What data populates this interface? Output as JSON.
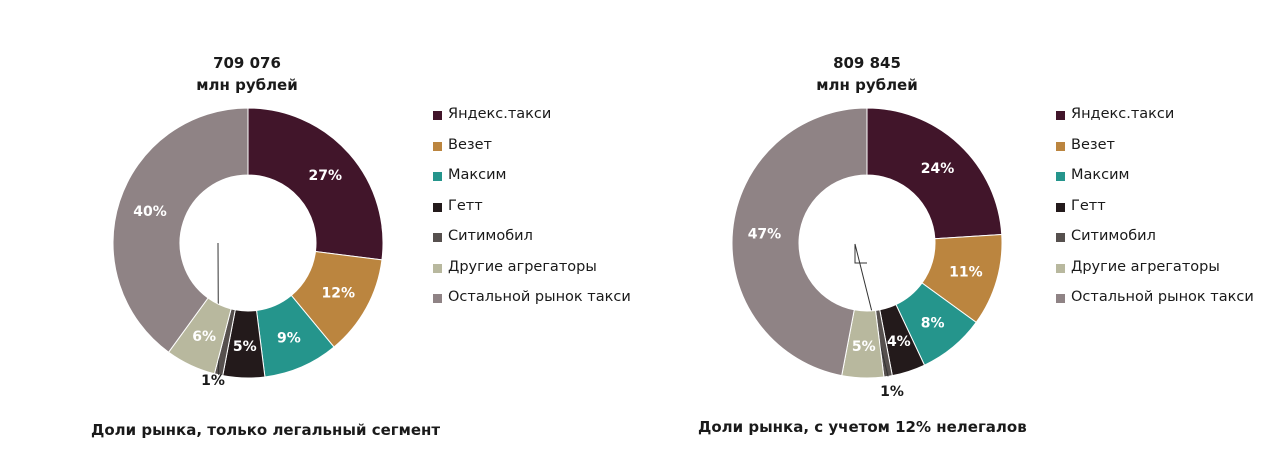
{
  "legend": [
    {
      "label": "Яндекс.такси",
      "color": "#41152a"
    },
    {
      "label": "Везет",
      "color": "#bb853f"
    },
    {
      "label": "Максим",
      "color": "#25958c"
    },
    {
      "label": "Гетт",
      "color": "#231a1b"
    },
    {
      "label": "Ситимобил",
      "color": "#56504e"
    },
    {
      "label": "Другие агрегаторы",
      "color": "#b8b89e"
    },
    {
      "label": "Остальной рынок такси",
      "color": "#8f8385"
    }
  ],
  "chart_data": [
    {
      "type": "pie",
      "variant": "donut",
      "title_value": "709 076",
      "title_unit": "млн рублей",
      "caption": "Доли рынка, только легальный сегмент",
      "legend_position": "right",
      "slices": [
        {
          "label": "Яндекс.такси",
          "value": 27,
          "display": "27%"
        },
        {
          "label": "Везет",
          "value": 12,
          "display": "12%"
        },
        {
          "label": "Максим",
          "value": 9,
          "display": "9%"
        },
        {
          "label": "Гетт",
          "value": 5,
          "display": "5%"
        },
        {
          "label": "Ситимобил",
          "value": 1,
          "display": "1%"
        },
        {
          "label": "Другие агрегаторы",
          "value": 6,
          "display": "6%"
        },
        {
          "label": "Остальной рынок такси",
          "value": 40,
          "display": "40%"
        }
      ]
    },
    {
      "type": "pie",
      "variant": "donut",
      "title_value": "809 845",
      "title_unit": "млн рублей",
      "caption": "Доли рынка, с учетом 12% нелегалов",
      "legend_position": "right",
      "slices": [
        {
          "label": "Яндекс.такси",
          "value": 24,
          "display": "24%"
        },
        {
          "label": "Везет",
          "value": 11,
          "display": "11%"
        },
        {
          "label": "Максим",
          "value": 8,
          "display": "8%"
        },
        {
          "label": "Гетт",
          "value": 4,
          "display": "4%"
        },
        {
          "label": "Ситимобил",
          "value": 1,
          "display": "1%"
        },
        {
          "label": "Другие агрегаторы",
          "value": 5,
          "display": "5%"
        },
        {
          "label": "Остальной рынок такси",
          "value": 47,
          "display": "47%"
        }
      ]
    }
  ]
}
